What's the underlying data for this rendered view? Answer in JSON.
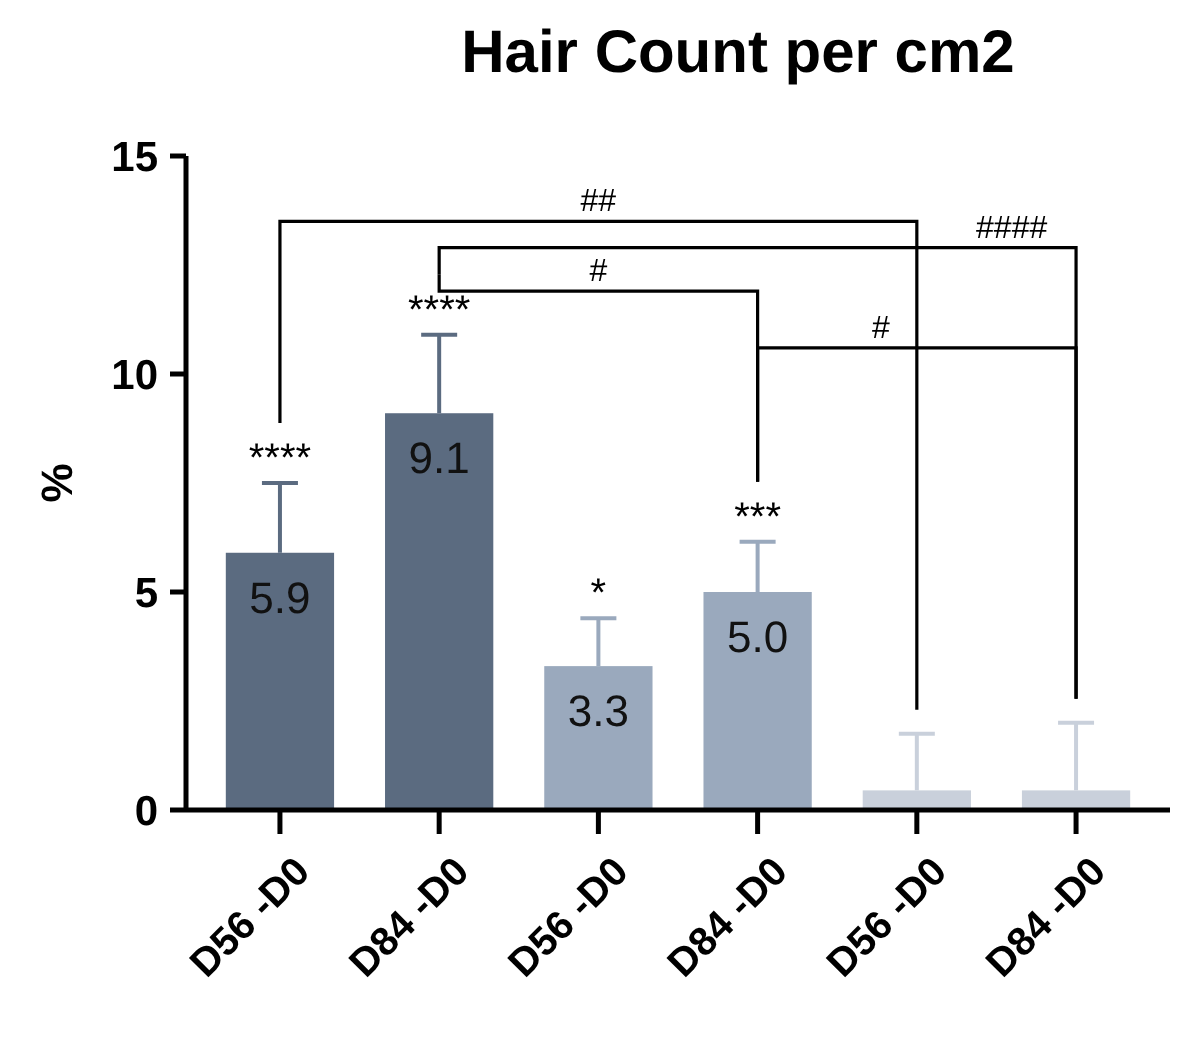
{
  "chart_data": {
    "type": "bar",
    "title": "Hair Count per cm2",
    "ylabel": "%",
    "categories": [
      "D56 -D0",
      "D84 -D0",
      "D56 -D0",
      "D84 -D0",
      "D56 -D0",
      "D84 -D0"
    ],
    "values": [
      5.9,
      9.1,
      3.3,
      5.0,
      0.45,
      0.45
    ],
    "errors": [
      1.6,
      1.8,
      1.1,
      1.15,
      1.3,
      1.55
    ],
    "colors": [
      "#5b6b80",
      "#5b6b80",
      "#9aa9bd",
      "#9aa9bd",
      "#c9d0db",
      "#c9d0db"
    ],
    "value_labels": [
      "5.9",
      "9.1",
      "3.3",
      "5.0",
      null,
      null
    ],
    "ylim": [
      0,
      15
    ],
    "yticks": [
      0,
      5,
      10,
      15
    ],
    "grid": false,
    "annotations": [
      "****",
      "****",
      "*",
      "***",
      "##",
      "####",
      "#",
      "#"
    ]
  }
}
